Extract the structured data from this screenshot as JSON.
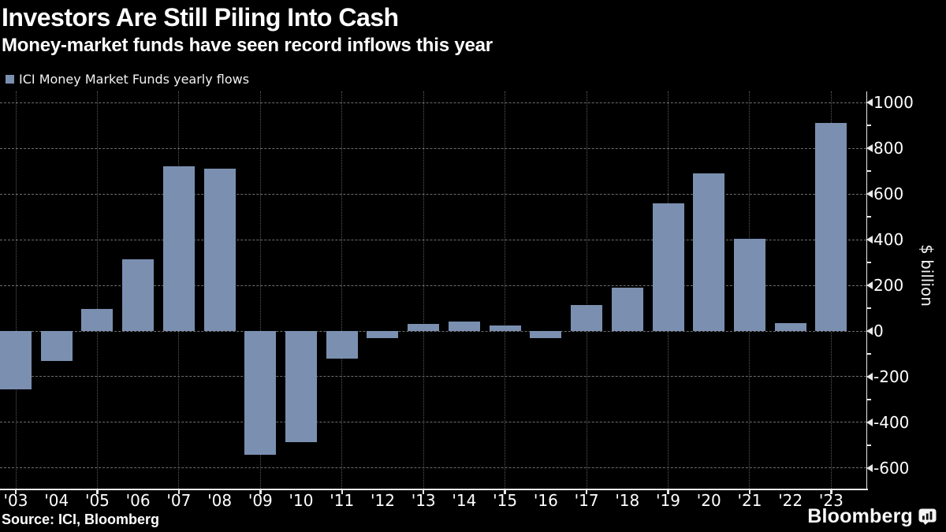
{
  "header": {
    "title": "Investors Are Still Piling Into Cash",
    "subtitle": "Money-market funds have seen record inflows this year"
  },
  "legend": {
    "label": "ICI Money Market Funds yearly flows"
  },
  "axes": {
    "y_title": "$ billion"
  },
  "footer": {
    "source": "Source: ICI, Bloomberg",
    "logo_text": "Bloomberg"
  },
  "colors": {
    "background": "#000000",
    "bar": "#7b90b1",
    "grid_h": "#6e6e6e",
    "grid_v": "#5a5a5a",
    "axis": "#e9e9e9",
    "text": "#ffffff"
  },
  "chart_data": {
    "type": "bar",
    "title": "Investors Are Still Piling Into Cash",
    "subtitle": "Money-market funds have seen record inflows this year",
    "categories": [
      "'03",
      "'04",
      "'05",
      "'06",
      "'07",
      "'08",
      "'09",
      "'10",
      "'11",
      "'12",
      "'13",
      "'14",
      "'15",
      "'16",
      "'17",
      "'18",
      "'19",
      "'20",
      "'21",
      "'22",
      "'23"
    ],
    "series": [
      {
        "name": "ICI Money Market Funds yearly flows",
        "values": [
          -255,
          -130,
          95,
          315,
          720,
          710,
          -540,
          -485,
          -120,
          -30,
          30,
          40,
          25,
          -30,
          115,
          190,
          560,
          690,
          405,
          35,
          910
        ]
      }
    ],
    "xlabel": "",
    "ylabel": "$ billion",
    "ylim": [
      -690,
      1049
    ],
    "y_ticks_major": [
      1000,
      800,
      600,
      400,
      200,
      0,
      -200,
      -400,
      -600
    ],
    "y_ticks_minor": [
      900,
      700,
      500,
      300,
      100,
      -100,
      -300,
      -500
    ],
    "x_gridline_categories": [
      "'03",
      "'05",
      "'07",
      "'09",
      "'11",
      "'13",
      "'15",
      "'17",
      "'19",
      "'21",
      "'23"
    ],
    "grid": "dashed horizontal at major ticks, dotted vertical every other year",
    "legend_position": "top-left",
    "y_axis_side": "right"
  }
}
